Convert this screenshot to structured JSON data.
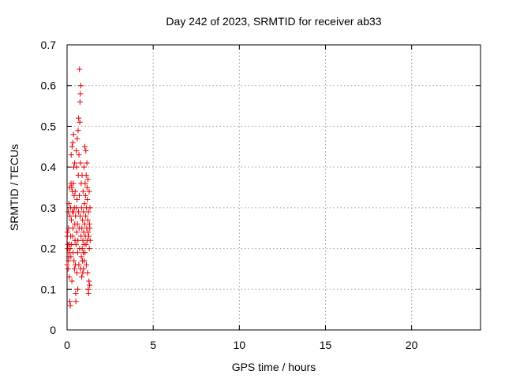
{
  "chart_data": {
    "type": "scatter",
    "title": "Day 242 of 2023, SRMTID for receiver ab33",
    "xlabel": "GPS time / hours",
    "ylabel": "SRMTID / TECUs",
    "xlim": [
      0,
      24
    ],
    "ylim": [
      0,
      0.7
    ],
    "xticks": [
      0,
      5,
      10,
      15,
      20
    ],
    "yticks": [
      0,
      0.1,
      0.2,
      0.3,
      0.4,
      0.5,
      0.6,
      0.7
    ],
    "grid": true,
    "marker": "plus",
    "color": "#e00000",
    "points": [
      [
        0.0,
        0.16
      ],
      [
        0.02,
        0.23
      ],
      [
        0.03,
        0.24
      ],
      [
        0.04,
        0.2
      ],
      [
        0.05,
        0.21
      ],
      [
        0.06,
        0.15
      ],
      [
        0.07,
        0.29
      ],
      [
        0.08,
        0.17
      ],
      [
        0.09,
        0.25
      ],
      [
        0.1,
        0.18
      ],
      [
        0.11,
        0.31
      ],
      [
        0.12,
        0.19
      ],
      [
        0.13,
        0.13
      ],
      [
        0.14,
        0.21
      ],
      [
        0.15,
        0.35
      ],
      [
        0.16,
        0.07
      ],
      [
        0.17,
        0.28
      ],
      [
        0.18,
        0.2
      ],
      [
        0.19,
        0.06
      ],
      [
        0.2,
        0.3
      ],
      [
        0.21,
        0.23
      ],
      [
        0.22,
        0.18
      ],
      [
        0.23,
        0.36
      ],
      [
        0.24,
        0.43
      ],
      [
        0.25,
        0.27
      ],
      [
        0.26,
        0.21
      ],
      [
        0.27,
        0.35
      ],
      [
        0.28,
        0.12
      ],
      [
        0.29,
        0.45
      ],
      [
        0.3,
        0.29
      ],
      [
        0.31,
        0.34
      ],
      [
        0.32,
        0.23
      ],
      [
        0.33,
        0.46
      ],
      [
        0.34,
        0.25
      ],
      [
        0.35,
        0.19
      ],
      [
        0.36,
        0.36
      ],
      [
        0.37,
        0.48
      ],
      [
        0.38,
        0.29
      ],
      [
        0.39,
        0.4
      ],
      [
        0.4,
        0.17
      ],
      [
        0.41,
        0.33
      ],
      [
        0.42,
        0.3
      ],
      [
        0.43,
        0.15
      ],
      [
        0.44,
        0.41
      ],
      [
        0.45,
        0.26
      ],
      [
        0.46,
        0.22
      ],
      [
        0.47,
        0.34
      ],
      [
        0.48,
        0.16
      ],
      [
        0.49,
        0.28
      ],
      [
        0.5,
        0.09
      ],
      [
        0.51,
        0.07
      ],
      [
        0.52,
        0.21
      ],
      [
        0.53,
        0.3
      ],
      [
        0.54,
        0.44
      ],
      [
        0.55,
        0.4
      ],
      [
        0.56,
        0.24
      ],
      [
        0.57,
        0.14
      ],
      [
        0.58,
        0.32
      ],
      [
        0.59,
        0.47
      ],
      [
        0.6,
        0.26
      ],
      [
        0.61,
        0.19
      ],
      [
        0.62,
        0.1
      ],
      [
        0.63,
        0.22
      ],
      [
        0.64,
        0.49
      ],
      [
        0.65,
        0.38
      ],
      [
        0.66,
        0.29
      ],
      [
        0.67,
        0.52
      ],
      [
        0.68,
        0.16
      ],
      [
        0.69,
        0.43
      ],
      [
        0.7,
        0.25
      ],
      [
        0.71,
        0.33
      ],
      [
        0.72,
        0.64
      ],
      [
        0.73,
        0.2
      ],
      [
        0.74,
        0.51
      ],
      [
        0.75,
        0.56
      ],
      [
        0.76,
        0.28
      ],
      [
        0.77,
        0.58
      ],
      [
        0.78,
        0.41
      ],
      [
        0.79,
        0.15
      ],
      [
        0.8,
        0.6
      ],
      [
        0.81,
        0.23
      ],
      [
        0.82,
        0.36
      ],
      [
        0.83,
        0.18
      ],
      [
        0.84,
        0.3
      ],
      [
        0.85,
        0.13
      ],
      [
        0.86,
        0.25
      ],
      [
        0.87,
        0.38
      ],
      [
        0.88,
        0.2
      ],
      [
        0.89,
        0.17
      ],
      [
        0.9,
        0.27
      ],
      [
        0.91,
        0.14
      ],
      [
        0.92,
        0.22
      ],
      [
        0.93,
        0.34
      ],
      [
        0.94,
        0.19
      ],
      [
        0.95,
        0.29
      ],
      [
        0.96,
        0.15
      ],
      [
        0.97,
        0.24
      ],
      [
        0.98,
        0.4
      ],
      [
        0.99,
        0.21
      ],
      [
        1.0,
        0.17
      ],
      [
        1.01,
        0.31
      ],
      [
        1.02,
        0.26
      ],
      [
        1.03,
        0.45
      ],
      [
        1.04,
        0.19
      ],
      [
        1.05,
        0.36
      ],
      [
        1.06,
        0.23
      ],
      [
        1.07,
        0.33
      ],
      [
        1.08,
        0.28
      ],
      [
        1.09,
        0.44
      ],
      [
        1.1,
        0.21
      ],
      [
        1.11,
        0.38
      ],
      [
        1.12,
        0.16
      ],
      [
        1.13,
        0.3
      ],
      [
        1.14,
        0.25
      ],
      [
        1.15,
        0.41
      ],
      [
        1.16,
        0.35
      ],
      [
        1.17,
        0.22
      ],
      [
        1.18,
        0.32
      ],
      [
        1.19,
        0.14
      ],
      [
        1.2,
        0.27
      ],
      [
        1.21,
        0.37
      ],
      [
        1.22,
        0.24
      ],
      [
        1.23,
        0.1
      ],
      [
        1.24,
        0.29
      ],
      [
        1.25,
        0.09
      ],
      [
        1.26,
        0.23
      ],
      [
        1.27,
        0.12
      ],
      [
        1.28,
        0.34
      ],
      [
        1.29,
        0.2
      ],
      [
        1.3,
        0.26
      ],
      [
        1.31,
        0.11
      ],
      [
        1.32,
        0.25
      ],
      [
        1.33,
        0.3
      ],
      [
        1.34,
        0.22
      ]
    ]
  }
}
